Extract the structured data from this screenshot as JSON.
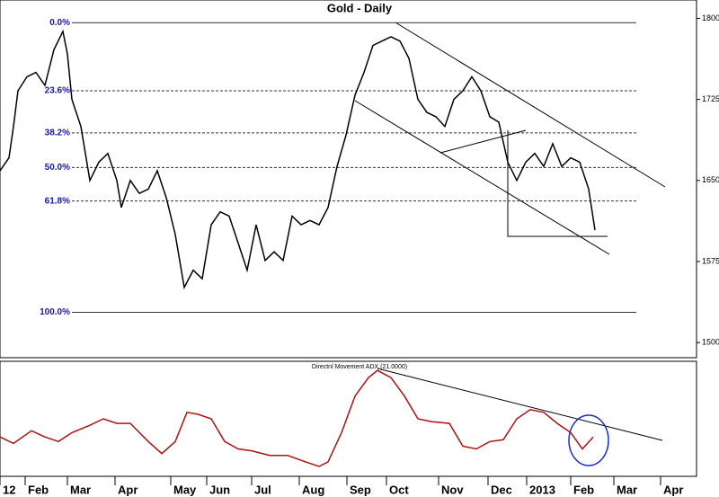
{
  "chart_data": [
    {
      "type": "line",
      "title": "Gold - Daily",
      "color": "#000000",
      "x": [
        0,
        4,
        6,
        8,
        12,
        16,
        20,
        24,
        28,
        30,
        32,
        36,
        40,
        44,
        48,
        52,
        54,
        58,
        62,
        66,
        70,
        74,
        78,
        82,
        86,
        90,
        94,
        98,
        102,
        106,
        110,
        114,
        118,
        122,
        126,
        130,
        134,
        138,
        142,
        146,
        150,
        154,
        158,
        162,
        166,
        170,
        174,
        178,
        182,
        186,
        190,
        194,
        198,
        202,
        206,
        210,
        214,
        218,
        222,
        226,
        230,
        234,
        238,
        242,
        246,
        250,
        254,
        258,
        262,
        264.8
      ],
      "values": [
        1659,
        1671,
        1700,
        1733,
        1746,
        1750,
        1738,
        1771,
        1788,
        1767,
        1725,
        1700,
        1650,
        1667,
        1675,
        1650,
        1625,
        1650,
        1638,
        1642,
        1659,
        1634,
        1600,
        1551,
        1567,
        1559,
        1609,
        1621,
        1617,
        1592,
        1567,
        1609,
        1576,
        1584,
        1576,
        1617,
        1609,
        1613,
        1609,
        1625,
        1663,
        1692,
        1729,
        1750,
        1775,
        1779,
        1783,
        1779,
        1763,
        1725,
        1713,
        1709,
        1700,
        1725,
        1733,
        1746,
        1733,
        1709,
        1704,
        1667,
        1650,
        1667,
        1675,
        1663,
        1684,
        1663,
        1671,
        1667,
        1642,
        1604
      ],
      "xlim": [
        0,
        310
      ],
      "ylim": [
        1486,
        1817
      ],
      "yticks": [
        1500,
        1575,
        1650,
        1725,
        1800
      ],
      "fib_levels": [
        {
          "label": "0.0%",
          "value": 1796
        },
        {
          "label": "23.6%",
          "value": 1733
        },
        {
          "label": "38.2%",
          "value": 1694
        },
        {
          "label": "50.0%",
          "value": 1662
        },
        {
          "label": "61.8%",
          "value": 1631
        },
        {
          "label": "100.0%",
          "value": 1528
        }
      ]
    },
    {
      "type": "line",
      "title": "Directnl Movement ADX (21.0000)",
      "color": "#b01010",
      "x": [
        0,
        6,
        14,
        20,
        26,
        32,
        40,
        46,
        52,
        58,
        66,
        72,
        78,
        83.2,
        88,
        94,
        100,
        106,
        112,
        120,
        128,
        136,
        142,
        146,
        152,
        158,
        164,
        168,
        174,
        180,
        186,
        192,
        200,
        206,
        212,
        218,
        224,
        230,
        236,
        242,
        248,
        254,
        259.2,
        264
      ],
      "values": [
        22.1,
        19.3,
        24.8,
        22.1,
        20.1,
        24.0,
        27.2,
        30.0,
        28.0,
        28.0,
        20.1,
        14.9,
        20.1,
        32.8,
        32.0,
        30.0,
        20.1,
        16.9,
        16.1,
        14.1,
        14.1,
        11.3,
        9.3,
        11.3,
        24.0,
        39.9,
        47.9,
        51.0,
        47.9,
        39.9,
        30.0,
        28.8,
        28.0,
        18.1,
        16.9,
        20.1,
        20.9,
        30.0,
        34.0,
        32.8,
        28.0,
        24.0,
        16.9,
        22.1
      ],
      "xlim": [
        0,
        310
      ],
      "ylim": [
        5,
        55
      ],
      "xticks": [
        {
          "value": 0,
          "label": "12"
        },
        {
          "value": 11.2,
          "label": "Feb"
        },
        {
          "value": 30,
          "label": "Mar"
        },
        {
          "value": 51.2,
          "label": "Apr"
        },
        {
          "value": 76,
          "label": "May"
        },
        {
          "value": 92,
          "label": "Jun"
        },
        {
          "value": 112,
          "label": "Jul"
        },
        {
          "value": 133.2,
          "label": "Aug"
        },
        {
          "value": 154.4,
          "label": "Sep"
        },
        {
          "value": 172,
          "label": "Oct"
        },
        {
          "value": 195.2,
          "label": "Nov"
        },
        {
          "value": 217.2,
          "label": "Dec"
        },
        {
          "value": 234.4,
          "label": "2013"
        },
        {
          "value": 254,
          "label": "Feb"
        },
        {
          "value": 273.2,
          "label": "Mar"
        },
        {
          "value": 294,
          "label": "Apr"
        }
      ]
    }
  ]
}
